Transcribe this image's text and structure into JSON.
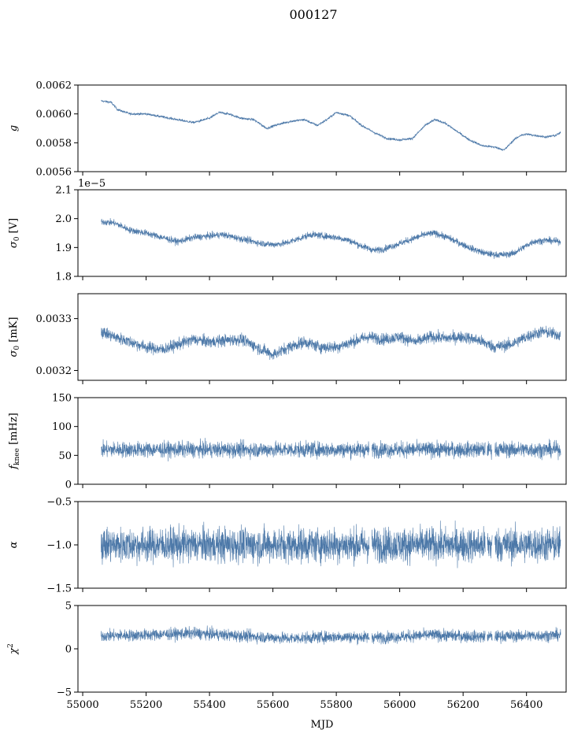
{
  "figure": {
    "title": "000127",
    "xlabel": "MJD",
    "x_ticks": [
      55000,
      55200,
      55400,
      55600,
      55800,
      56000,
      56200,
      56400
    ],
    "x_tick_labels": [
      "55000",
      "55200",
      "55400",
      "55600",
      "55800",
      "56000",
      "56200",
      "56400"
    ],
    "line_color": "#4c78a8"
  },
  "chart_data": [
    {
      "type": "line",
      "ylabel": "g",
      "xlim": [
        54985,
        56525
      ],
      "ylim": [
        0.0056,
        0.0062
      ],
      "yticks": [
        0.0056,
        0.0058,
        0.006,
        0.0062
      ],
      "ytick_labels": [
        "0.0056",
        "0.0058",
        "0.0060",
        "0.0062"
      ],
      "offset_text": "",
      "noise": 8e-06,
      "x": [
        55058,
        55090,
        55110,
        55150,
        55200,
        55250,
        55300,
        55350,
        55400,
        55430,
        55460,
        55500,
        55540,
        55580,
        55620,
        55660,
        55700,
        55740,
        55770,
        55800,
        55840,
        55880,
        55920,
        55960,
        56000,
        56040,
        56080,
        56110,
        56140,
        56180,
        56220,
        56260,
        56300,
        56330,
        56360,
        56380,
        56400,
        56430,
        56460,
        56490,
        56508
      ],
      "y": [
        0.00609,
        0.00608,
        0.00603,
        0.006,
        0.006,
        0.00598,
        0.00596,
        0.00594,
        0.00597,
        0.00601,
        0.006,
        0.00597,
        0.00596,
        0.0059,
        0.00593,
        0.00595,
        0.00596,
        0.00592,
        0.00596,
        0.00601,
        0.00599,
        0.00592,
        0.00587,
        0.00583,
        0.00582,
        0.00583,
        0.00592,
        0.00596,
        0.00594,
        0.00588,
        0.00582,
        0.00578,
        0.00577,
        0.00575,
        0.00582,
        0.00585,
        0.00586,
        0.00585,
        0.00584,
        0.00585,
        0.00587
      ]
    },
    {
      "type": "line",
      "ylabel": "σ0 [V]",
      "xlim": [
        54985,
        56525
      ],
      "ylim": [
        1.8e-05,
        2.1e-05
      ],
      "yticks": [
        1.8e-05,
        1.9e-05,
        2e-05,
        2.1e-05
      ],
      "ytick_labels": [
        "1.8",
        "1.9",
        "2.0",
        "2.1"
      ],
      "offset_text": "1e−5",
      "noise": 1.1e-07,
      "x": [
        55058,
        55100,
        55150,
        55200,
        55250,
        55300,
        55350,
        55400,
        55440,
        55480,
        55520,
        55560,
        55600,
        55640,
        55680,
        55720,
        55760,
        55800,
        55840,
        55880,
        55920,
        55950,
        55990,
        56040,
        56080,
        56110,
        56150,
        56190,
        56230,
        56270,
        56300,
        56330,
        56360,
        56390,
        56420,
        56460,
        56508
      ],
      "y": [
        1.99e-05,
        1.985e-05,
        1.96e-05,
        1.95e-05,
        1.935e-05,
        1.92e-05,
        1.935e-05,
        1.94e-05,
        1.945e-05,
        1.935e-05,
        1.925e-05,
        1.915e-05,
        1.91e-05,
        1.915e-05,
        1.93e-05,
        1.945e-05,
        1.94e-05,
        1.935e-05,
        1.925e-05,
        1.905e-05,
        1.89e-05,
        1.895e-05,
        1.91e-05,
        1.93e-05,
        1.945e-05,
        1.95e-05,
        1.935e-05,
        1.915e-05,
        1.895e-05,
        1.88e-05,
        1.875e-05,
        1.875e-05,
        1.88e-05,
        1.9e-05,
        1.92e-05,
        1.925e-05,
        1.92e-05
      ]
    },
    {
      "type": "line",
      "ylabel": "σ0 [mK]",
      "xlim": [
        54985,
        56525
      ],
      "ylim": [
        0.003181,
        0.003348
      ],
      "yticks": [
        0.0032,
        0.0033
      ],
      "ytick_labels": [
        "0.0032",
        "0.0033"
      ],
      "offset_text": "",
      "noise": 1.1e-05,
      "x": [
        55058,
        55100,
        55150,
        55200,
        55250,
        55300,
        55350,
        55400,
        55450,
        55500,
        55550,
        55600,
        55650,
        55700,
        55750,
        55800,
        55850,
        55900,
        55950,
        56000,
        56050,
        56100,
        56150,
        56200,
        56250,
        56300,
        56350,
        56400,
        56450,
        56508
      ],
      "y": [
        0.003275,
        0.003265,
        0.003255,
        0.003245,
        0.00324,
        0.00325,
        0.00326,
        0.003255,
        0.003258,
        0.00326,
        0.003245,
        0.00323,
        0.003245,
        0.003255,
        0.003245,
        0.003245,
        0.003255,
        0.003265,
        0.00326,
        0.003265,
        0.003255,
        0.003265,
        0.003262,
        0.003265,
        0.003258,
        0.003245,
        0.00325,
        0.003265,
        0.003275,
        0.003268
      ]
    },
    {
      "type": "line",
      "ylabel": "fknee [mHz]",
      "xlim": [
        54985,
        56525
      ],
      "ylim": [
        0,
        150
      ],
      "yticks": [
        0,
        50,
        100,
        150
      ],
      "ytick_labels": [
        "0",
        "50",
        "100",
        "150"
      ],
      "offset_text": "",
      "noise": 13,
      "x": [
        55058,
        55300,
        55600,
        55900,
        56200,
        56508
      ],
      "y": [
        60,
        60,
        60,
        60,
        60,
        60
      ],
      "gaps": [
        [
          55904,
          55912
        ],
        [
          56270,
          56276
        ],
        [
          56292,
          56300
        ]
      ]
    },
    {
      "type": "line",
      "ylabel": "α",
      "xlim": [
        54985,
        56525
      ],
      "ylim": [
        -1.5,
        -0.5
      ],
      "yticks": [
        -1.5,
        -1.0,
        -0.5
      ],
      "ytick_labels": [
        "−1.5",
        "−1.0",
        "−0.5"
      ],
      "offset_text": "",
      "noise": 0.19,
      "x": [
        55058,
        55300,
        55600,
        55900,
        56200,
        56508
      ],
      "y": [
        -1.0,
        -1.0,
        -1.0,
        -1.0,
        -1.0,
        -1.0
      ],
      "gaps": [
        [
          55904,
          55912
        ],
        [
          56270,
          56276
        ],
        [
          56292,
          56300
        ]
      ]
    },
    {
      "type": "line",
      "ylabel": "χ2",
      "xlim": [
        54985,
        56525
      ],
      "ylim": [
        -5,
        5
      ],
      "yticks": [
        -5,
        0,
        5
      ],
      "ytick_labels": [
        "−5",
        "0",
        "5"
      ],
      "offset_text": "",
      "noise": 0.65,
      "x": [
        55058,
        55200,
        55350,
        55500,
        55650,
        55800,
        55950,
        56100,
        56250,
        56400,
        56508
      ],
      "y": [
        1.5,
        1.6,
        1.8,
        1.5,
        1.2,
        1.4,
        1.3,
        1.6,
        1.4,
        1.5,
        1.6
      ],
      "gaps": [
        [
          55904,
          55912
        ],
        [
          56270,
          56276
        ],
        [
          56292,
          56300
        ]
      ]
    }
  ]
}
